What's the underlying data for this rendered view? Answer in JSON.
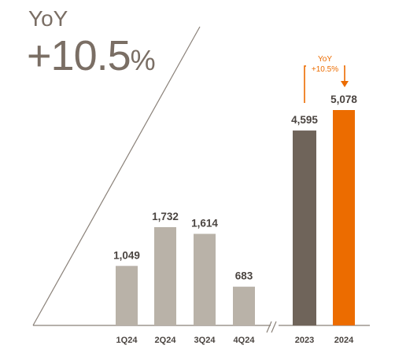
{
  "header": {
    "label": "YoY",
    "value": "+10.5",
    "unit": "%"
  },
  "chart_data": {
    "type": "bar",
    "categories": [
      "1Q24",
      "2Q24",
      "3Q24",
      "4Q24",
      "2023",
      "2024"
    ],
    "values": [
      1049,
      1732,
      1614,
      683,
      4595,
      5078
    ],
    "value_labels": [
      "1,049",
      "1,732",
      "1,614",
      "683",
      "4,595",
      "5,078"
    ],
    "groups": [
      "quarter",
      "quarter",
      "quarter",
      "quarter",
      "annual",
      "annual"
    ],
    "annotation": {
      "line1": "YoY",
      "line2": "+10.5%"
    },
    "colors": {
      "quarter": "#b9b2a8",
      "annual_2023": "#6f645a",
      "annual_2024": "#ec6c00",
      "text": "#4a4440",
      "axis": "#8a8179"
    }
  }
}
